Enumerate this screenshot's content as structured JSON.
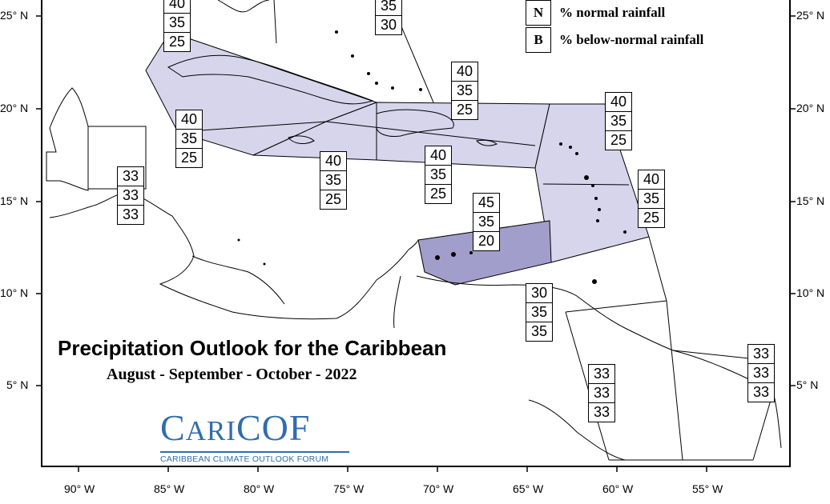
{
  "map": {
    "title": "Precipitation Outlook for the Caribbean",
    "subtitle": "August - September - October - 2022",
    "colors": {
      "zone_fill_light": "#d6d5ec",
      "zone_fill_dark": "#a29ecb",
      "outline": "#000000",
      "logo_blue": "#2f6db0"
    },
    "longitude_labels": [
      "90° W",
      "85° W",
      "80° W",
      "75° W",
      "70° W",
      "65° W",
      "60° W",
      "55° W"
    ],
    "latitude_labels_left": [
      "25° N",
      "20° N",
      "15° N",
      "10° N",
      "5° N"
    ],
    "latitude_labels_right": [
      "25° N",
      "20° N",
      "15° N",
      "10° N",
      "5° N"
    ],
    "legend": [
      {
        "key": "N",
        "text": "% normal rainfall"
      },
      {
        "key": "B",
        "text": "% below-normal rainfall"
      }
    ],
    "probability_boxes": [
      {
        "zone": "bahamas-north",
        "values": [
          "40",
          "35",
          "25"
        ]
      },
      {
        "zone": "atlantic-north",
        "values": [
          "35",
          "30"
        ]
      },
      {
        "zone": "cuba",
        "values": [
          "40",
          "35",
          "25"
        ]
      },
      {
        "zone": "hispaniola-north",
        "values": [
          "40",
          "35",
          "25"
        ]
      },
      {
        "zone": "northern-leewards",
        "values": [
          "40",
          "35",
          "25"
        ]
      },
      {
        "zone": "belize",
        "values": [
          "33",
          "33",
          "33"
        ]
      },
      {
        "zone": "jamaica",
        "values": [
          "40",
          "35",
          "25"
        ]
      },
      {
        "zone": "hispaniola-south",
        "values": [
          "40",
          "35",
          "25"
        ]
      },
      {
        "zone": "windwards",
        "values": [
          "40",
          "35",
          "25"
        ]
      },
      {
        "zone": "abc-islands",
        "values": [
          "45",
          "35",
          "20"
        ]
      },
      {
        "zone": "trinidad",
        "values": [
          "30",
          "35",
          "35"
        ]
      },
      {
        "zone": "guyana",
        "values": [
          "33",
          "33",
          "33"
        ]
      },
      {
        "zone": "french-guiana",
        "values": [
          "33",
          "33",
          "33"
        ]
      }
    ],
    "logo": {
      "word_prefix": "C",
      "word_small_1": "ARI",
      "word_suffix": "COF",
      "full_name": "CARIBBEAN CLIMATE OUTLOOK FORUM"
    }
  }
}
